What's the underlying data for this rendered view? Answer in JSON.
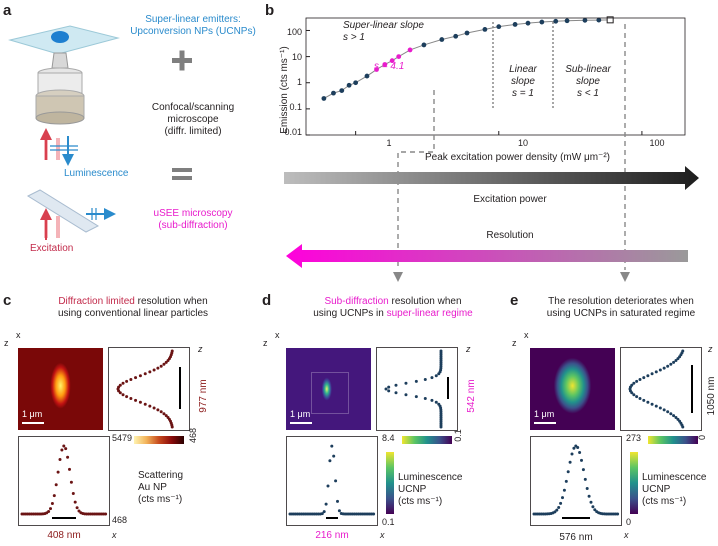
{
  "panels": {
    "a": "a",
    "b": "b",
    "c": "c",
    "d": "d",
    "e": "e"
  },
  "a": {
    "emitters": "Super-linear emitters:",
    "emitters2": "Upconversion NPs (UCNPs)",
    "plus": "+",
    "microscope1": "Confocal/scanning",
    "microscope2": "microscope",
    "microscope3": "(diffr. limited)",
    "equals": "=",
    "luminescence": "Luminescence",
    "excitation": "Excitation",
    "usee1": "uSEE microscopy",
    "usee2": "(sub-diffraction)"
  },
  "b": {
    "superlinear": "Super-linear slope",
    "superlinear_s": "s > 1",
    "s41": "s = 4.1",
    "linear1": "Linear",
    "linear2": "slope",
    "linear3": "s = 1",
    "sublinear1": "Sub-linear",
    "sublinear2": "slope",
    "sublinear3": "s < 1",
    "ylabel": "Emission (cts ms⁻¹)",
    "xlabel": "Peak excitation power density (mW μm⁻²)",
    "yticks": [
      "100",
      "10",
      "1",
      "0.1",
      "0.01"
    ],
    "xticks": [
      "1",
      "10",
      "100"
    ],
    "excitation_power": "Excitation power",
    "resolution": "Resolution"
  },
  "c": {
    "title_red": "Diffraction limited",
    "title_rest": " resolution when",
    "title2": "using conventional linear particles",
    "axis_x": "x",
    "axis_z": "z",
    "scale": "1 μm",
    "z_width": "977 nm",
    "x_width": "408 nm",
    "cb_max": "5479",
    "cb_min": "468",
    "cb_rot": "468",
    "legend1": "Scattering",
    "legend2": "Au NP",
    "legend3": "(cts ms⁻¹)"
  },
  "d": {
    "title_mag": "Sub-diffraction",
    "title_rest": " resolution when",
    "title2a": "using UCNPs in ",
    "title2b": "super-linear regime",
    "axis_x": "x",
    "axis_z": "z",
    "scale": "1 μm",
    "z_width": "542 nm",
    "x_width": "216 nm",
    "cb_max": "8.4",
    "cb_min": "0.1",
    "cb_rot": "0.1",
    "legend1": "Luminescence",
    "legend2": "UCNP",
    "legend3": "(cts ms⁻¹)"
  },
  "e": {
    "title1": "The resolution deteriorates when",
    "title2": "using UCNPs in saturated regime",
    "axis_x": "x",
    "axis_z": "z",
    "scale": "1 μm",
    "z_width": "1050 nm",
    "x_width": "576 nm",
    "cb_max": "273",
    "cb_min": "0",
    "cb_rot": "0",
    "legend1": "Luminescence",
    "legend2": "UCNP",
    "legend3": "(cts ms⁻¹)"
  },
  "colors": {
    "blue": "#2a8bcc",
    "magenta": "#e81ccc",
    "red": "#c22a4a"
  },
  "chart_data": {
    "type": "scatter",
    "xlabel": "Peak excitation power density (mW μm⁻²)",
    "ylabel": "Emission (cts ms⁻¹)",
    "xscale": "log",
    "yscale": "log",
    "xlim": [
      0.45,
      200
    ],
    "ylim": [
      0.01,
      300
    ],
    "x": [
      0.6,
      0.7,
      0.8,
      0.9,
      1.0,
      1.2,
      1.4,
      1.6,
      1.8,
      2.0,
      2.4,
      3.0,
      4.0,
      5.0,
      6.0,
      8.0,
      10,
      13,
      16,
      20,
      25,
      30,
      40,
      50,
      60
    ],
    "y": [
      0.25,
      0.4,
      0.5,
      0.8,
      1.0,
      1.8,
      3.2,
      5,
      7,
      10,
      18,
      28,
      45,
      60,
      80,
      110,
      140,
      170,
      190,
      210,
      225,
      235,
      245,
      250,
      255
    ]
  }
}
